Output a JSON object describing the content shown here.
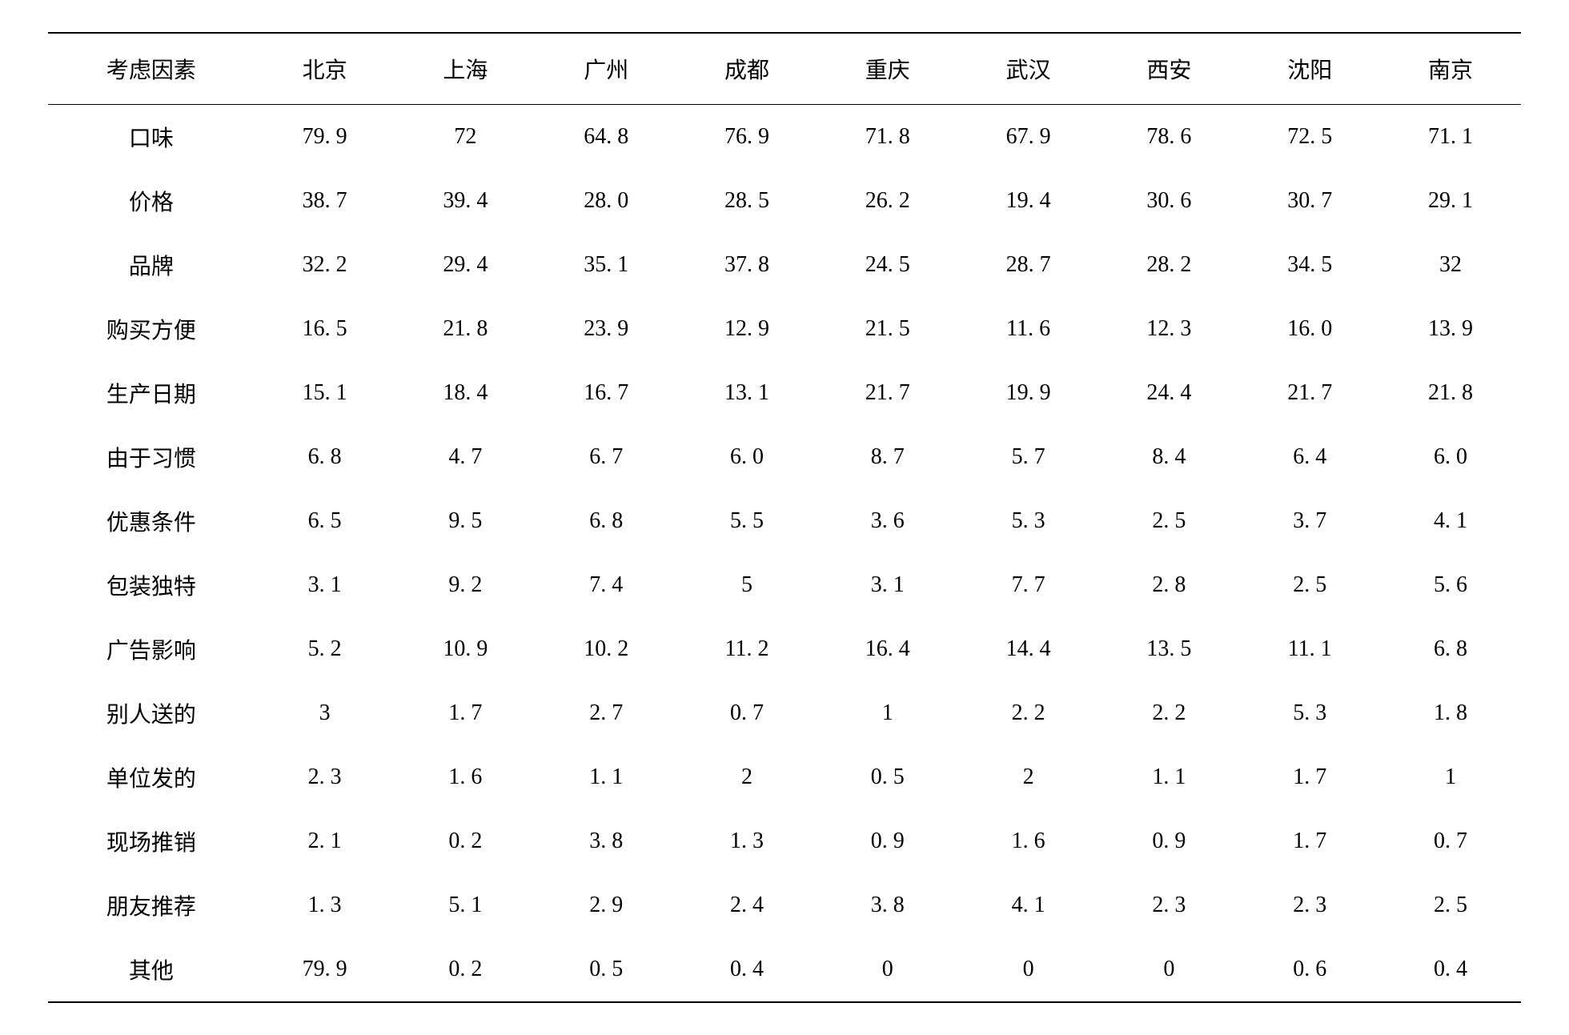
{
  "table": {
    "type": "table",
    "background_color": "#ffffff",
    "text_color": "#000000",
    "font_family": "SimSun",
    "font_size_pt": 21,
    "border_color": "#000000",
    "border_top_width": 2,
    "border_header_bottom_width": 1.5,
    "border_bottom_width": 2,
    "row_label_header": "考虑因素",
    "columns": [
      "北京",
      "上海",
      "广州",
      "成都",
      "重庆",
      "武汉",
      "西安",
      "沈阳",
      "南京"
    ],
    "row_labels": [
      "口味",
      "价格",
      "品牌",
      "购买方便",
      "生产日期",
      "由于习惯",
      "优惠条件",
      "包装独特",
      "广告影响",
      "别人送的",
      "单位发的",
      "现场推销",
      "朋友推荐",
      "其他"
    ],
    "rows": [
      [
        "79. 9",
        "72",
        "64. 8",
        "76. 9",
        "71. 8",
        "67. 9",
        "78. 6",
        "72. 5",
        "71. 1"
      ],
      [
        "38. 7",
        "39. 4",
        "28. 0",
        "28. 5",
        "26. 2",
        "19. 4",
        "30. 6",
        "30. 7",
        "29. 1"
      ],
      [
        "32. 2",
        "29. 4",
        "35. 1",
        "37. 8",
        "24. 5",
        "28. 7",
        "28. 2",
        "34. 5",
        "32"
      ],
      [
        "16. 5",
        "21. 8",
        "23. 9",
        "12. 9",
        "21. 5",
        "11. 6",
        "12. 3",
        "16. 0",
        "13. 9"
      ],
      [
        "15. 1",
        "18. 4",
        "16. 7",
        "13. 1",
        "21. 7",
        "19. 9",
        "24. 4",
        "21. 7",
        "21. 8"
      ],
      [
        "6. 8",
        "4. 7",
        "6. 7",
        "6. 0",
        "8. 7",
        "5. 7",
        "8. 4",
        "6. 4",
        "6. 0"
      ],
      [
        "6. 5",
        "9. 5",
        "6. 8",
        "5. 5",
        "3. 6",
        "5. 3",
        "2. 5",
        "3. 7",
        "4. 1"
      ],
      [
        "3. 1",
        "9. 2",
        "7. 4",
        "5",
        "3. 1",
        "7. 7",
        "2. 8",
        "2. 5",
        "5. 6"
      ],
      [
        "5. 2",
        "10. 9",
        "10. 2",
        "11. 2",
        "16. 4",
        "14. 4",
        "13. 5",
        "11. 1",
        "6. 8"
      ],
      [
        "3",
        "1. 7",
        "2. 7",
        "0. 7",
        "1",
        "2. 2",
        "2. 2",
        "5. 3",
        "1. 8"
      ],
      [
        "2. 3",
        "1. 6",
        "1. 1",
        "2",
        "0. 5",
        "2",
        "1. 1",
        "1. 7",
        "1"
      ],
      [
        "2. 1",
        "0. 2",
        "3. 8",
        "1. 3",
        "0. 9",
        "1. 6",
        "0. 9",
        "1. 7",
        "0. 7"
      ],
      [
        "1. 3",
        "5. 1",
        "2. 9",
        "2. 4",
        "3. 8",
        "4. 1",
        "2. 3",
        "2. 3",
        "2. 5"
      ],
      [
        "79. 9",
        "0. 2",
        "0. 5",
        "0. 4",
        "0",
        "0",
        "0",
        "0. 6",
        "0. 4"
      ]
    ]
  }
}
